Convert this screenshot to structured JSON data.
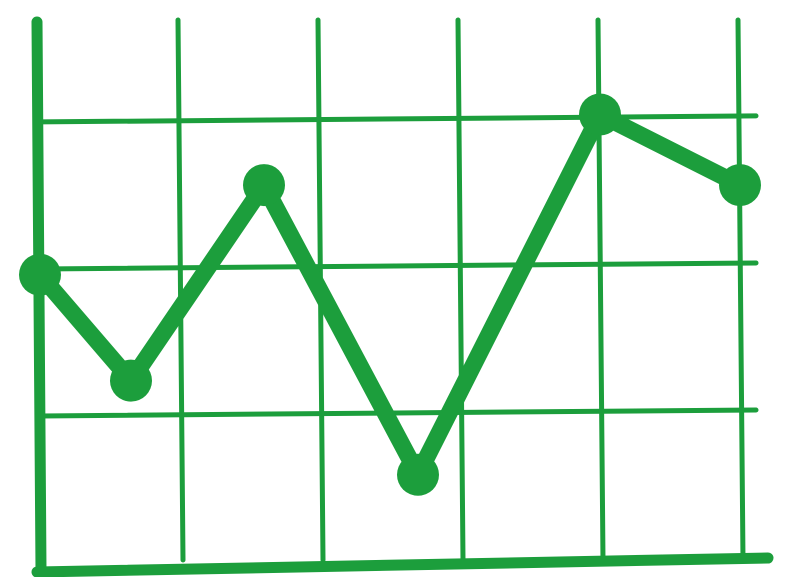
{
  "chart_data": {
    "type": "line",
    "x": [
      0,
      0.65,
      1.6,
      2.7,
      4,
      5
    ],
    "series": [
      {
        "color": "#1c9e3c",
        "values": [
          1.94,
          1.22,
          2.55,
          0.58,
          3.03,
          2.55
        ]
      }
    ],
    "xlim": [
      0,
      5.2
    ],
    "ylim": [
      0,
      3.7
    ],
    "xticks": [
      1,
      2,
      3,
      4,
      5
    ],
    "yticks": [
      1,
      2,
      3
    ],
    "grid": true
  }
}
